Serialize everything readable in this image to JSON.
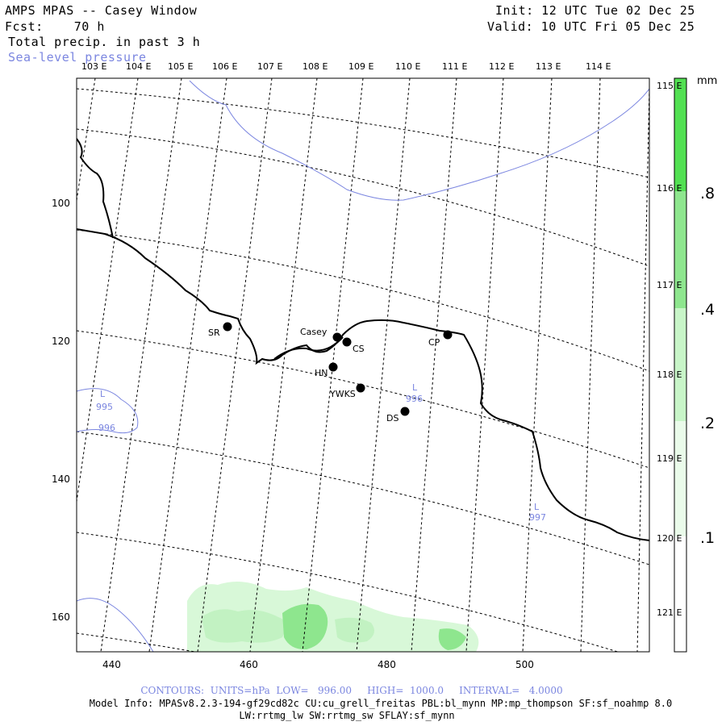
{
  "header": {
    "title": "AMPS MPAS -- Casey Window",
    "forecast": "Fcst:    70 h",
    "init": "Init: 12 UTC Tue 02 Dec 25",
    "valid": "Valid: 10 UTC Fri 05 Dec 25",
    "field_main": "Total precip. in past 3 h",
    "field_overlay": "Sea-level pressure"
  },
  "map": {
    "top_longitudes": [
      "103 E",
      "104 E",
      "105 E",
      "106 E",
      "107 E",
      "108 E",
      "109 E",
      "110 E",
      "111 E",
      "112 E",
      "113 E",
      "114 E"
    ],
    "right_longitudes": [
      "115 E",
      "116 E",
      "117 E",
      "118 E",
      "119 E",
      "120 E",
      "121 E"
    ],
    "left_ticks": [
      "100",
      "120",
      "140",
      "160"
    ],
    "bottom_ticks": [
      "440",
      "460",
      "480",
      "500"
    ],
    "stations": [
      "SR",
      "Casey",
      "CS",
      "CP",
      "HN",
      "YWKS",
      "DS"
    ],
    "pressure_labels": [
      "L",
      "995",
      "996",
      "L",
      "996",
      "L",
      "997"
    ],
    "colors": {
      "coast": "#000000",
      "slp": "#7b86e0",
      "grid": "#000000",
      "precip_light": "#c8f5c8",
      "precip_mid": "#8ee68e"
    }
  },
  "colorbar": {
    "unit": "mm",
    "tick_labels": [
      ".8",
      ".4",
      ".2",
      ".1"
    ],
    "colors": [
      "#52e052",
      "#8ee68e",
      "#c8f5c8",
      "#eafbea",
      "#ffffff"
    ]
  },
  "footer": {
    "contours_line": "CONTOURS:  UNITS=hPa  LOW=   996.00     HIGH=  1000.0     INTERVAL=   4.0000",
    "model_info": "Model Info: MPASv8.2.3-194-gf29cd82c CU:cu_grell_freitas PBL:bl_mynn MP:mp_thompson SF:sf_noahmp 8.0",
    "model_info2": "LW:rrtmg_lw SW:rrtmg_sw SFLAY:sf_mynn"
  }
}
